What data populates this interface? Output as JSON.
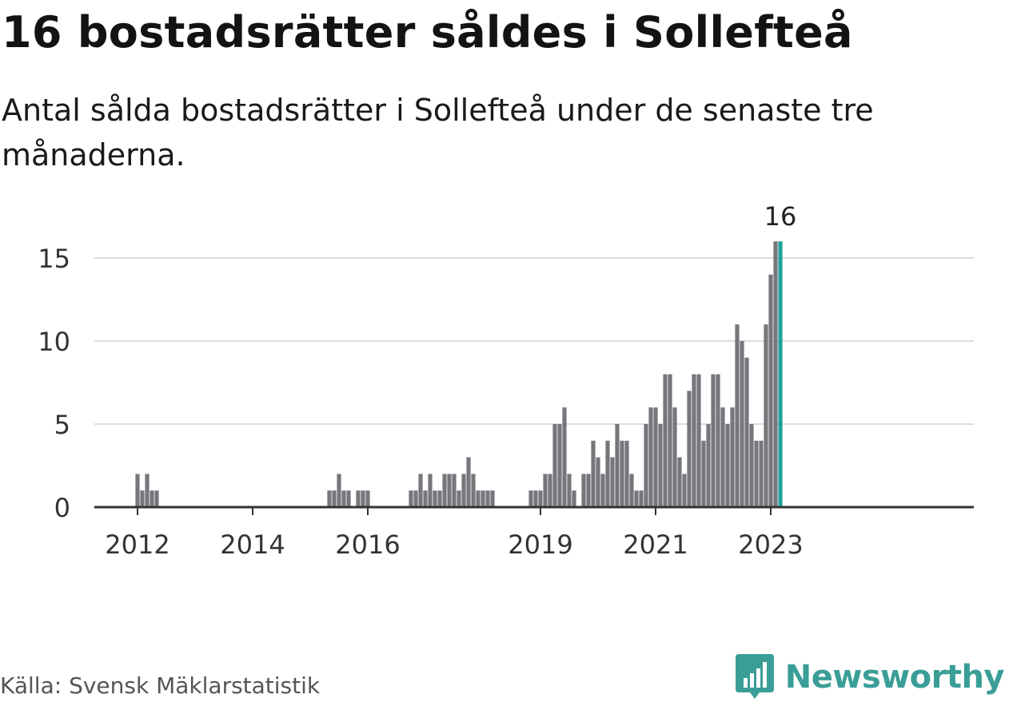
{
  "header": {
    "title": "16 bostadsrätter såldes i Sollefteå",
    "subtitle": "Antal sålda bostadsrätter i Sollefteå under de senaste tre månaderna."
  },
  "chart_data": {
    "type": "bar",
    "title": "16 bostadsrätter såldes i Sollefteå",
    "subtitle": "Antal sålda bostadsrätter i Sollefteå under de senaste tre månaderna.",
    "xlabel": "",
    "ylabel": "",
    "ylim": [
      0,
      16
    ],
    "yticks": [
      0,
      5,
      10,
      15
    ],
    "x_ticks": [
      {
        "label": "2012",
        "x": "2012-01"
      },
      {
        "label": "2014",
        "x": "2014-01"
      },
      {
        "label": "2016",
        "x": "2016-01"
      },
      {
        "label": "2019",
        "x": "2019-01"
      },
      {
        "label": "2021",
        "x": "2021-01"
      },
      {
        "label": "2023",
        "x": "2023-01"
      }
    ],
    "grid": true,
    "x": [
      "2012-01",
      "2012-02",
      "2012-03",
      "2012-04",
      "2012-05",
      "2015-05",
      "2015-06",
      "2015-07",
      "2015-08",
      "2015-09",
      "2015-11",
      "2015-12",
      "2016-01",
      "2016-10",
      "2016-11",
      "2016-12",
      "2017-01",
      "2017-02",
      "2017-03",
      "2017-04",
      "2017-05",
      "2017-06",
      "2017-07",
      "2017-08",
      "2017-09",
      "2017-10",
      "2017-11",
      "2017-12",
      "2018-01",
      "2018-02",
      "2018-03",
      "2018-11",
      "2018-12",
      "2019-01",
      "2019-02",
      "2019-03",
      "2019-04",
      "2019-05",
      "2019-06",
      "2019-07",
      "2019-08",
      "2019-10",
      "2019-11",
      "2019-12",
      "2020-01",
      "2020-02",
      "2020-03",
      "2020-04",
      "2020-05",
      "2020-06",
      "2020-07",
      "2020-08",
      "2020-09",
      "2020-10",
      "2020-11",
      "2020-12",
      "2021-01",
      "2021-02",
      "2021-03",
      "2021-04",
      "2021-05",
      "2021-06",
      "2021-07",
      "2021-08",
      "2021-09",
      "2021-10",
      "2021-11",
      "2021-12",
      "2022-01",
      "2022-02",
      "2022-03",
      "2022-04",
      "2022-05",
      "2022-06",
      "2022-07",
      "2022-08",
      "2022-09",
      "2022-10",
      "2022-11",
      "2022-12",
      "2023-01",
      "2023-02"
    ],
    "values": [
      2,
      1,
      2,
      1,
      1,
      1,
      1,
      2,
      1,
      1,
      1,
      1,
      1,
      1,
      1,
      2,
      1,
      2,
      1,
      1,
      2,
      2,
      2,
      1,
      2,
      3,
      2,
      1,
      1,
      1,
      1,
      1,
      1,
      1,
      2,
      2,
      5,
      5,
      6,
      2,
      1,
      2,
      2,
      4,
      3,
      2,
      4,
      3,
      5,
      4,
      4,
      2,
      1,
      1,
      5,
      6,
      6,
      5,
      8,
      8,
      6,
      3,
      2,
      7,
      8,
      8,
      4,
      5,
      8,
      8,
      6,
      5,
      6,
      11,
      10,
      9,
      5,
      4,
      4,
      11,
      14,
      16
    ],
    "highlight": {
      "x": "2023-03",
      "value": 16,
      "label": "16"
    },
    "colors": {
      "bar": "#77767c",
      "highlight": "#1fa39a",
      "grid": "#dddddd",
      "axis": "#333333"
    }
  },
  "footer": {
    "source": "Källa: Svensk Mäklarstatistik",
    "brand": "Newsworthy",
    "brand_icon": "bar-chart-logo-icon"
  }
}
